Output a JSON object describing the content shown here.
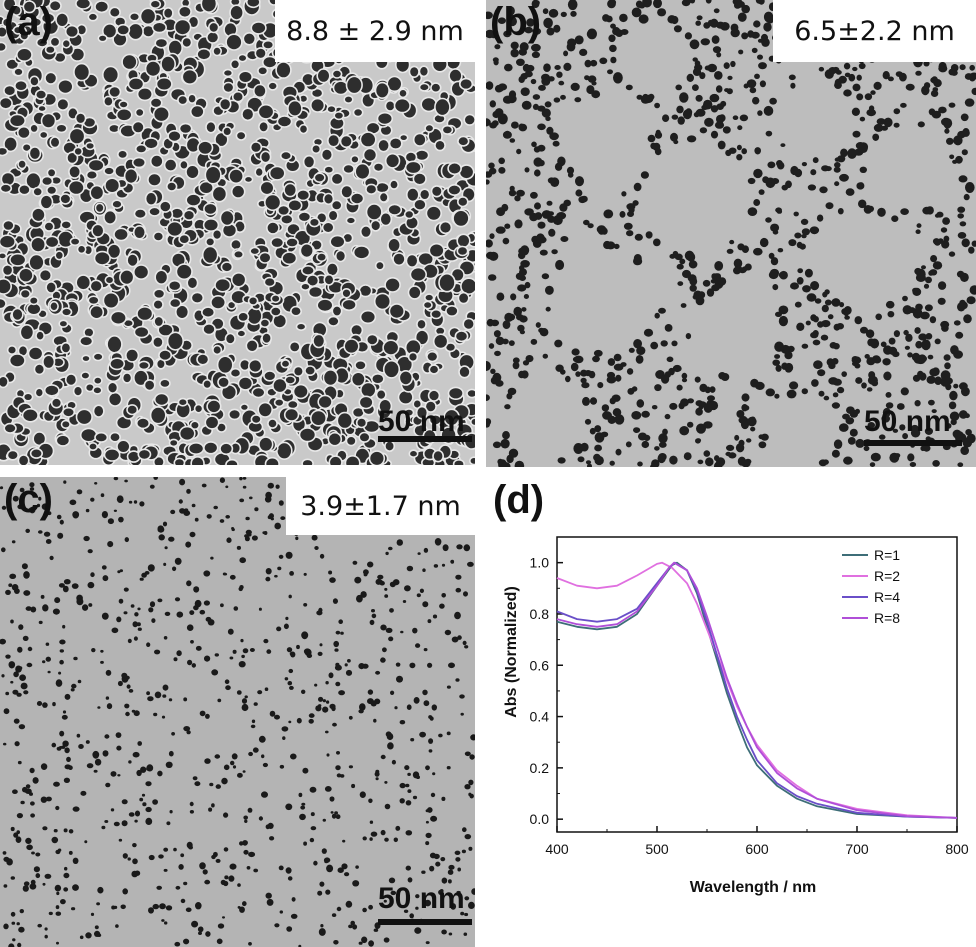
{
  "panels": {
    "a": {
      "letter": "(a)",
      "size_label": "8.8 ± 2.9 nm",
      "scale_bar": "50 nm"
    },
    "b": {
      "letter": "(b)",
      "size_label": "6.5±2.2 nm",
      "scale_bar": "50 nm"
    },
    "c": {
      "letter": "(c)",
      "size_label": "3.9±1.7 nm",
      "scale_bar": "50 nm"
    },
    "d": {
      "letter": "(d)"
    }
  },
  "chart_data": {
    "type": "line",
    "xlabel": "Wavelength / nm",
    "ylabel": "Abs (Normalized)",
    "xlim": [
      400,
      800
    ],
    "ylim": [
      -0.05,
      1.1
    ],
    "xticks": [
      400,
      500,
      600,
      700,
      800
    ],
    "yticks": [
      0.0,
      0.2,
      0.4,
      0.6,
      0.8,
      1.0
    ],
    "legend_position": "top-right",
    "grid": false,
    "series": [
      {
        "name": "R=1",
        "color": "#3e6e78",
        "points": [
          [
            400,
            0.77
          ],
          [
            420,
            0.75
          ],
          [
            440,
            0.74
          ],
          [
            460,
            0.75
          ],
          [
            480,
            0.8
          ],
          [
            500,
            0.91
          ],
          [
            515,
            0.99
          ],
          [
            520,
            1.0
          ],
          [
            530,
            0.97
          ],
          [
            540,
            0.88
          ],
          [
            550,
            0.75
          ],
          [
            560,
            0.62
          ],
          [
            570,
            0.49
          ],
          [
            580,
            0.38
          ],
          [
            590,
            0.28
          ],
          [
            600,
            0.21
          ],
          [
            620,
            0.13
          ],
          [
            640,
            0.08
          ],
          [
            660,
            0.05
          ],
          [
            700,
            0.02
          ],
          [
            750,
            0.01
          ],
          [
            800,
            0.005
          ]
        ]
      },
      {
        "name": "R=2",
        "color": "#e070e0",
        "points": [
          [
            400,
            0.94
          ],
          [
            420,
            0.91
          ],
          [
            440,
            0.9
          ],
          [
            460,
            0.91
          ],
          [
            480,
            0.95
          ],
          [
            500,
            0.995
          ],
          [
            505,
            1.0
          ],
          [
            515,
            0.98
          ],
          [
            530,
            0.92
          ],
          [
            540,
            0.84
          ],
          [
            550,
            0.74
          ],
          [
            560,
            0.64
          ],
          [
            570,
            0.54
          ],
          [
            580,
            0.44
          ],
          [
            590,
            0.36
          ],
          [
            600,
            0.29
          ],
          [
            620,
            0.19
          ],
          [
            640,
            0.13
          ],
          [
            660,
            0.08
          ],
          [
            700,
            0.04
          ],
          [
            750,
            0.015
          ],
          [
            800,
            0.005
          ]
        ]
      },
      {
        "name": "R=4",
        "color": "#6a4fc8",
        "points": [
          [
            400,
            0.81
          ],
          [
            420,
            0.78
          ],
          [
            440,
            0.77
          ],
          [
            460,
            0.78
          ],
          [
            480,
            0.82
          ],
          [
            500,
            0.92
          ],
          [
            512,
            0.98
          ],
          [
            518,
            1.0
          ],
          [
            530,
            0.97
          ],
          [
            540,
            0.89
          ],
          [
            550,
            0.77
          ],
          [
            560,
            0.64
          ],
          [
            570,
            0.51
          ],
          [
            580,
            0.4
          ],
          [
            590,
            0.31
          ],
          [
            600,
            0.23
          ],
          [
            620,
            0.14
          ],
          [
            640,
            0.09
          ],
          [
            660,
            0.06
          ],
          [
            700,
            0.025
          ],
          [
            750,
            0.01
          ],
          [
            800,
            0.005
          ]
        ]
      },
      {
        "name": "R=8",
        "color": "#b04fd8",
        "points": [
          [
            400,
            0.78
          ],
          [
            420,
            0.76
          ],
          [
            440,
            0.75
          ],
          [
            460,
            0.76
          ],
          [
            480,
            0.81
          ],
          [
            500,
            0.91
          ],
          [
            512,
            0.98
          ],
          [
            517,
            1.0
          ],
          [
            530,
            0.97
          ],
          [
            540,
            0.9
          ],
          [
            550,
            0.79
          ],
          [
            560,
            0.67
          ],
          [
            570,
            0.55
          ],
          [
            580,
            0.45
          ],
          [
            590,
            0.36
          ],
          [
            600,
            0.28
          ],
          [
            620,
            0.18
          ],
          [
            640,
            0.12
          ],
          [
            660,
            0.08
          ],
          [
            700,
            0.035
          ],
          [
            750,
            0.012
          ],
          [
            800,
            0.005
          ]
        ]
      }
    ]
  }
}
